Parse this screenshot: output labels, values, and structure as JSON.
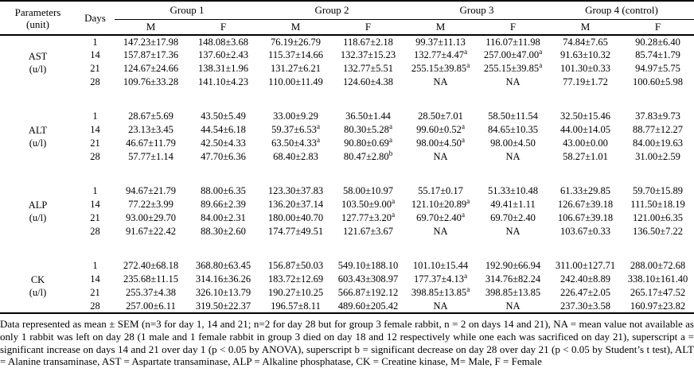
{
  "header": {
    "parameters_line1": "Parameters",
    "parameters_line2": "(unit)",
    "days": "Days",
    "groups": [
      "Group 1",
      "Group 2",
      "Group 3",
      "Group 4 (control)"
    ],
    "sex": [
      "M",
      "F"
    ]
  },
  "table": {
    "sections": [
      {
        "parameter": "AST",
        "unit": "(u/l)",
        "rows": [
          {
            "day": "1",
            "values": [
              "147.23±17.98",
              "148.08±3.68",
              "76.19±26.79",
              "118.67±2.18",
              "99.37±11.13",
              "116.07±11.98",
              "74.84±7.65",
              "90.28±6.40"
            ]
          },
          {
            "day": "14",
            "values": [
              "157.87±17.36",
              "137.60±2.43",
              "115.37±14.66",
              "132.37±15.23",
              "132.77±4.47^a",
              "257.00±47.00^a",
              "91.63±10.32",
              "85.74±1.79"
            ]
          },
          {
            "day": "21",
            "values": [
              "124.67±24.66",
              "138.31±1.96",
              "131.27±6.21",
              "132.77±5.51",
              "255.15±39.85^a",
              "255.15±39.85^a",
              "101.30±0.33",
              "94.97±5.75"
            ]
          },
          {
            "day": "28",
            "values": [
              "109.76±33.28",
              "141.10±4.23",
              "110.00±11.49",
              "124.60±4.38",
              "NA",
              "NA",
              "77.19±1.72",
              "100.60±5.98"
            ]
          }
        ]
      },
      {
        "parameter": "ALT",
        "unit": "(u/l)",
        "rows": [
          {
            "day": "1",
            "values": [
              "28.67±5.69",
              "43.50±5.49",
              "33.00±9.29",
              "36.50±1.44",
              "28.50±7.01",
              "58.50±11.54",
              "32.50±15.46",
              "37.83±9.73"
            ]
          },
          {
            "day": "14",
            "values": [
              "23.13±3.45",
              "44.54±6.18",
              "59.37±6.53^a",
              "80.30±5.28^a",
              "99.60±0.52^a",
              "84.65±10.35",
              "44.00±14.05",
              "88.77±12.27"
            ]
          },
          {
            "day": "21",
            "values": [
              "46.67±11.79",
              "42.50±4.33",
              "63.50±4.33^a",
              "90.80±0.69^a",
              "98.00±4.50^a",
              "98.00±4.50",
              "43.00±0.00",
              "84.00±19.63"
            ]
          },
          {
            "day": "28",
            "values": [
              "57.77±1.14",
              "47.70±6.36",
              "68.40±2.83",
              "80.47±2.80^b",
              "NA",
              "NA",
              "58.27±1.01",
              "31.00±2.59"
            ]
          }
        ]
      },
      {
        "parameter": "ALP",
        "unit": "(u/l)",
        "rows": [
          {
            "day": "1",
            "values": [
              "94.67±21.79",
              "88.00±6.35",
              "123.30±37.83",
              "58.00±10.97",
              "55.17±0.17",
              "51.33±10.48",
              "61.33±29.85",
              "59.70±15.89"
            ]
          },
          {
            "day": "14",
            "values": [
              "77.22±3.99",
              "89.66±2.39",
              "136.20±37.14",
              "103.50±9.00^a",
              "121.10±20.89^a",
              "49.41±1.11",
              "126.67±39.18",
              "111.50±18.19"
            ]
          },
          {
            "day": "21",
            "values": [
              "93.00±29.70",
              "84.00±2.31",
              "180.00±40.70",
              "127.77±3.20^a",
              "69.70±2.40^a",
              "69.70±2.40",
              "106.67±39.18",
              "121.00±6.35"
            ]
          },
          {
            "day": "28",
            "values": [
              "91.67±22.42",
              "88.30±2.60",
              "174.77±49.51",
              "121.67±3.67",
              "NA",
              "NA",
              "103.67±0.33",
              "136.50±7.22"
            ]
          }
        ]
      },
      {
        "parameter": "CK",
        "unit": "(u/l)",
        "rows": [
          {
            "day": "1",
            "values": [
              "272.40±68.18",
              "368.80±63.45",
              "156.87±50.03",
              "549.10±188.10",
              "101.10±15.44",
              "192.90±66.94",
              "311.00±127.71",
              "288.00±72.68"
            ]
          },
          {
            "day": "14",
            "values": [
              "235.68±11.15",
              "314.16±36.26",
              "183.72±12.69",
              "603.43±308.97",
              "177.37±4.13^a",
              "314.76±82.24",
              "242.40±8.89",
              "338.10±161.40"
            ]
          },
          {
            "day": "21",
            "values": [
              "255.37±4.38",
              "326.10±13.79",
              "190.27±10.25",
              "566.87±192.12",
              "398.85±13.85^a",
              "398.85±13.85",
              "226.47±2.05",
              "265.17±47.52"
            ]
          },
          {
            "day": "28",
            "values": [
              "257.00±6.11",
              "319.50±22.37",
              "196.57±8.11",
              "489.60±205.42",
              "NA",
              "NA",
              "237.30±3.58",
              "160.97±23.82"
            ]
          }
        ]
      }
    ]
  },
  "footnote": "Data represented as mean ± SEM (n=3 for day 1, 14 and 21; n=2 for day 28 but for group 3 female rabbit, n = 2 on days 14 and 21), NA = mean value not available as only 1 rabbit was left on day 28 (1 male and 1 female rabbit in group 3 died on day 18 and 12 respectively while one each was sacrificed on day 21), superscript a = significant increase on days 14 and 21 over day 1 (p < 0.05 by ANOVA), superscript b = significant decrease on day 28 over day 21 (p < 0.05 by Student’s t test), ALT = Alanine transaminase, AST = Aspartate transaminase, ALP = Alkaline phosphatase, CK = Creatine kinase, M= Male, F = Female"
}
